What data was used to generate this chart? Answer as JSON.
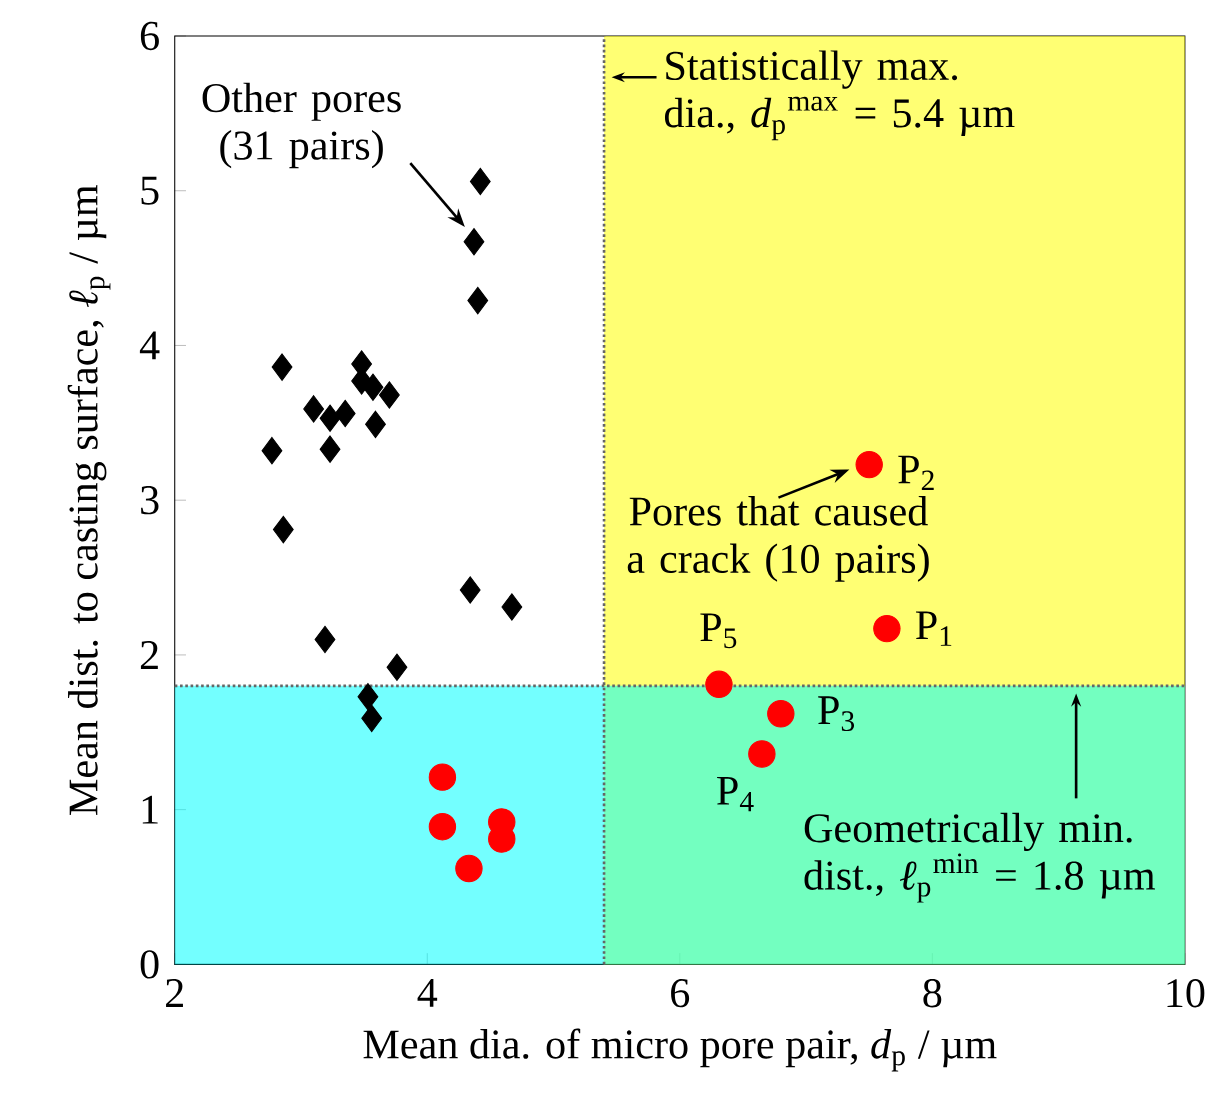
{
  "chart_data": {
    "type": "scatter",
    "xlabel": "Mean dia. of micro pore pair, *d*$_{p}$ / µm",
    "ylabel": "Mean dist. to casting surface, *ℓ*$_{p}$ / µm",
    "xlim": [
      2,
      10
    ],
    "ylim": [
      0,
      6
    ],
    "xticks": [
      2,
      4,
      6,
      8,
      10
    ],
    "yticks": [
      0,
      1,
      2,
      3,
      4,
      5,
      6
    ],
    "grid": false,
    "series": [
      {
        "color": "#000000",
        "marker": "diamond",
        "x": [
          4.42,
          4.37,
          4.4,
          2.85,
          3.48,
          3.48,
          3.57,
          3.7,
          3.1,
          3.23,
          3.35,
          3.59,
          2.77,
          3.23,
          2.86,
          4.34,
          4.67,
          3.19,
          3.76,
          3.53,
          3.56
        ],
        "values": [
          5.06,
          4.67,
          4.29,
          3.86,
          3.88,
          3.77,
          3.73,
          3.68,
          3.59,
          3.53,
          3.56,
          3.49,
          3.32,
          3.33,
          2.81,
          2.42,
          2.31,
          2.1,
          1.92,
          1.73,
          1.59
        ]
      },
      {
        "color": "#ff0000",
        "marker": "circle",
        "x": [
          7.64,
          7.5,
          6.8,
          6.65,
          6.31,
          4.12,
          4.12,
          4.59,
          4.59,
          4.33
        ],
        "values": [
          2.17,
          3.23,
          1.62,
          1.36,
          1.81,
          1.21,
          0.89,
          0.92,
          0.81,
          0.62
        ]
      }
    ],
    "ref_lines": [
      {
        "axis": "x",
        "value": 5.4,
        "label": "Statistically max. dia., *d*$_{p}$$^{max}$ = 5.4 µm",
        "color": "#666666",
        "line_style": "dotted"
      },
      {
        "axis": "y",
        "value": 1.8,
        "label": "Geometrically min. dist., *ℓ*$_{p}$$^{min}$ = 1.8 µm",
        "color": "#666666",
        "line_style": "dotted"
      }
    ],
    "bands": [
      {
        "axis": "x",
        "from": 5.4,
        "to": 10,
        "color": "#ffff00"
      },
      {
        "axis": "y",
        "from": 0,
        "to": 1.8,
        "color": "#00ffff"
      }
    ],
    "annotations": [
      {
        "text": "Other pores (31 pairs)",
        "x": 4.37,
        "y": 4.67
      },
      {
        "text": "Pores that caused a crack (10 pairs)",
        "x": 7.5,
        "y": 3.23
      },
      {
        "text": "P$_{1}$",
        "x": 7.64,
        "y": 2.17
      },
      {
        "text": "P$_{2}$",
        "x": 7.5,
        "y": 3.23
      },
      {
        "text": "P$_{3}$",
        "x": 6.8,
        "y": 1.62
      },
      {
        "text": "P$_{4}$",
        "x": 6.65,
        "y": 1.36
      },
      {
        "text": "P$_{5}$",
        "x": 6.31,
        "y": 1.81
      }
    ]
  }
}
